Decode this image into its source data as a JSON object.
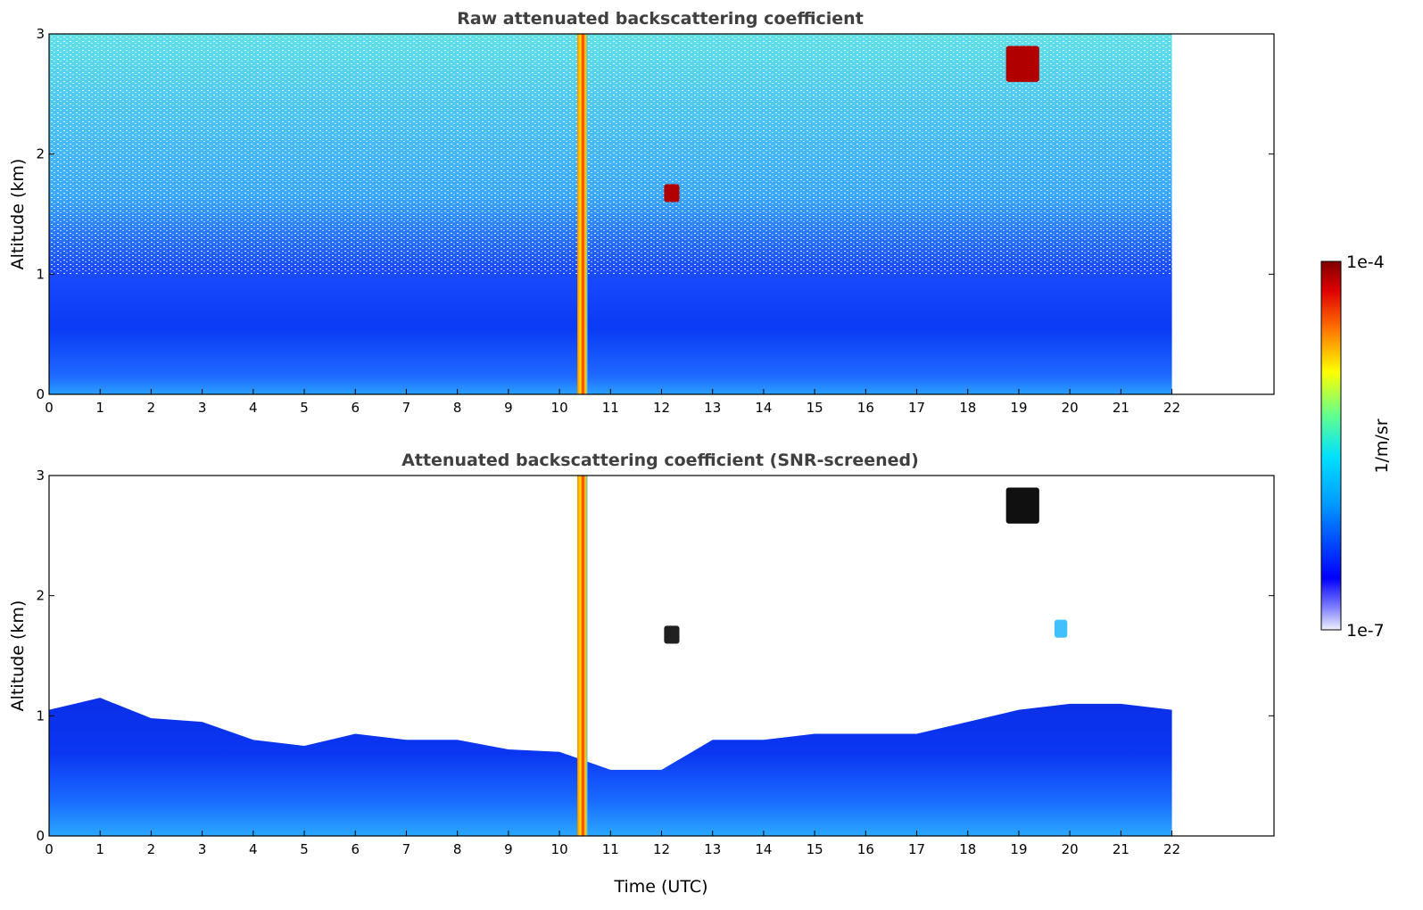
{
  "colors": {
    "background": "#ffffff",
    "title": "#404040",
    "colormap": [
      "#f0f0ff",
      "#b9b9ff",
      "#8080ff",
      "#0000ff",
      "#0050ff",
      "#00a0ff",
      "#00e0ff",
      "#40ffc0",
      "#a0ff60",
      "#ffff00",
      "#ffb000",
      "#ff5000",
      "#e00000",
      "#800000"
    ]
  },
  "colorbar": {
    "label": "1/m/sr",
    "max_label": "1e-4",
    "min_label": "1e-7",
    "scale": "log",
    "range": [
      1e-07,
      0.0001
    ]
  },
  "chart_data": [
    {
      "type": "heatmap",
      "title": "Raw attenuated backscattering coefficient",
      "xlabel": "",
      "ylabel": "Altitude (km)",
      "xlim": [
        0,
        24
      ],
      "ylim": [
        0,
        3
      ],
      "x_ticks": [
        "0",
        "1",
        "2",
        "3",
        "4",
        "5",
        "6",
        "7",
        "8",
        "9",
        "10",
        "11",
        "12",
        "13",
        "14",
        "15",
        "16",
        "17",
        "18",
        "19",
        "20",
        "21",
        "22"
      ],
      "y_ticks": [
        "0",
        "1",
        "2",
        "3"
      ],
      "data_extent_hours": [
        0,
        22
      ],
      "features": [
        {
          "kind": "boundary-layer",
          "top_km": 0.6
        },
        {
          "kind": "precipitation-column",
          "time_h": [
            10.35,
            10.55
          ],
          "alt_km": [
            0,
            3
          ]
        },
        {
          "kind": "cloud",
          "time_h": [
            12.05,
            12.35
          ],
          "alt_km": [
            1.6,
            1.75
          ]
        },
        {
          "kind": "cloud",
          "time_h": [
            18.75,
            19.4
          ],
          "alt_km": [
            2.6,
            2.9
          ]
        }
      ]
    },
    {
      "type": "heatmap",
      "title": "Attenuated backscattering coefficient (SNR-screened)",
      "xlabel": "Time (UTC)",
      "ylabel": "Altitude (km)",
      "xlim": [
        0,
        24
      ],
      "ylim": [
        0,
        3
      ],
      "x_ticks": [
        "0",
        "1",
        "2",
        "3",
        "4",
        "5",
        "6",
        "7",
        "8",
        "9",
        "10",
        "11",
        "12",
        "13",
        "14",
        "15",
        "16",
        "17",
        "18",
        "19",
        "20",
        "21",
        "22"
      ],
      "y_ticks": [
        "0",
        "1",
        "2",
        "3"
      ],
      "data_extent_hours": [
        0,
        22
      ],
      "screened_top_km": [
        [
          0,
          1.05
        ],
        [
          1,
          1.15
        ],
        [
          2,
          0.98
        ],
        [
          3,
          0.95
        ],
        [
          4,
          0.8
        ],
        [
          5,
          0.75
        ],
        [
          6,
          0.85
        ],
        [
          7,
          0.8
        ],
        [
          8,
          0.8
        ],
        [
          9,
          0.72
        ],
        [
          10,
          0.7
        ],
        [
          11,
          0.55
        ],
        [
          12,
          0.55
        ],
        [
          13,
          0.8
        ],
        [
          14,
          0.8
        ],
        [
          15,
          0.85
        ],
        [
          16,
          0.85
        ],
        [
          17,
          0.85
        ],
        [
          18,
          0.95
        ],
        [
          19,
          1.05
        ],
        [
          20,
          1.1
        ],
        [
          21,
          1.1
        ],
        [
          22,
          1.05
        ]
      ],
      "features": [
        {
          "kind": "precipitation-column",
          "time_h": [
            10.35,
            10.55
          ],
          "alt_km": [
            0,
            3
          ]
        },
        {
          "kind": "cloud",
          "time_h": [
            12.05,
            12.35
          ],
          "alt_km": [
            1.6,
            1.75
          ]
        },
        {
          "kind": "cloud",
          "time_h": [
            18.75,
            19.4
          ],
          "alt_km": [
            2.6,
            2.9
          ]
        },
        {
          "kind": "cloud",
          "time_h": [
            19.7,
            19.95
          ],
          "alt_km": [
            1.65,
            1.8
          ]
        }
      ]
    }
  ]
}
